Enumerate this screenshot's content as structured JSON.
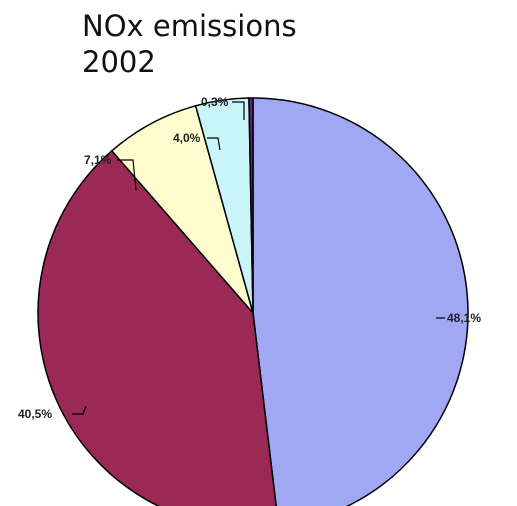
{
  "chart_data": {
    "type": "pie",
    "title_line1": "NOx emissions",
    "title_line2": "2002",
    "slices": [
      {
        "label": "48,1%",
        "value": 48.1,
        "color": "#a0a8f4"
      },
      {
        "label": "40,5%",
        "value": 40.5,
        "color": "#9a2a55"
      },
      {
        "label": "7,1%",
        "value": 7.1,
        "color": "#fffdd0"
      },
      {
        "label": "4,0%",
        "value": 4.0,
        "color": "#c8f4fa"
      },
      {
        "label": "0,3%",
        "value": 0.3,
        "color": "#5a2a6a"
      }
    ]
  }
}
